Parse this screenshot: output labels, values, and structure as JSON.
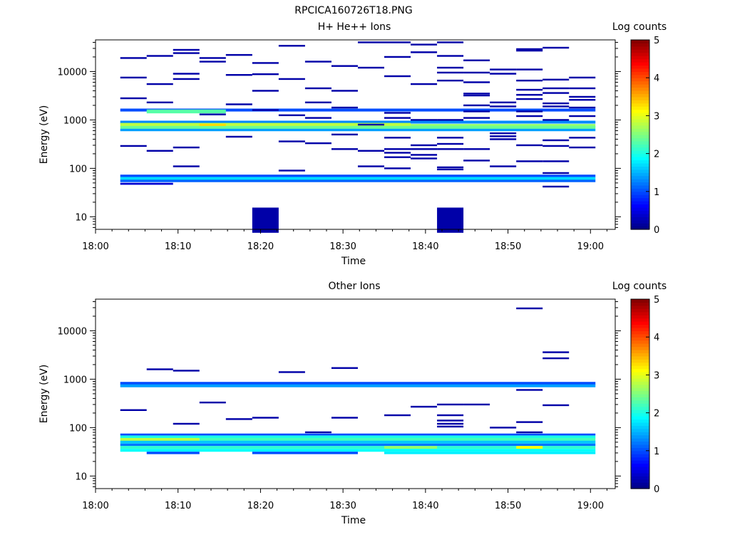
{
  "figure_title": "RPCICA160726T18.PNG",
  "colors": {
    "colormap": [
      "#00007f",
      "#0000ff",
      "#007fff",
      "#00ffff",
      "#7fff7f",
      "#ffff00",
      "#ff7f00",
      "#ff0000",
      "#7f0000"
    ]
  },
  "chart_data": [
    {
      "type": "heatmap",
      "title": "H+ He++ Ions",
      "xlabel": "Time",
      "ylabel": "Energy (eV)",
      "x_ticks": [
        "18:00",
        "18:10",
        "18:20",
        "18:30",
        "18:40",
        "18:50",
        "19:00"
      ],
      "x_range_min": [
        0,
        63
      ],
      "y_ticks": [
        10,
        100,
        1000,
        10000
      ],
      "y_scale": "log",
      "ylim": [
        5.5,
        45000
      ],
      "colorbar": {
        "title": "Log counts",
        "ticks": [
          0,
          1,
          2,
          3,
          4,
          5
        ],
        "range": [
          0,
          5
        ]
      },
      "time_bins_min": [
        3,
        6.2,
        9.4,
        12.6,
        15.8,
        19,
        22.2,
        25.4,
        28.6,
        31.8,
        35,
        38.2,
        41.4,
        44.6,
        47.8,
        51,
        54.2,
        57.4,
        60.6
      ],
      "bands": [
        {
          "e": 1600,
          "t": [
            3,
            60.6
          ],
          "v": 1.0,
          "h": 0.03
        },
        {
          "e": 1500,
          "t": [
            6.2,
            15.8
          ],
          "v": 2.3,
          "h": 0.04
        },
        {
          "e": 900,
          "t": [
            3,
            60.6
          ],
          "v": 1.3,
          "h": 0.03
        },
        {
          "e": 800,
          "t": [
            3,
            38.2
          ],
          "v": 2.8,
          "h": 0.035
        },
        {
          "e": 780,
          "t": [
            12.6,
            15.8
          ],
          "v": 3.3,
          "h": 0.03
        },
        {
          "e": 760,
          "t": [
            38.2,
            60.6
          ],
          "v": 2.6,
          "h": 0.035
        },
        {
          "e": 700,
          "t": [
            3,
            60.6
          ],
          "v": 2.4,
          "h": 0.03
        },
        {
          "e": 620,
          "t": [
            3,
            60.6
          ],
          "v": 1.4,
          "h": 0.025
        },
        {
          "e": 70,
          "t": [
            3,
            60.6
          ],
          "v": 1.0,
          "h": 0.025
        },
        {
          "e": 62,
          "t": [
            3,
            60.6
          ],
          "v": 1.7,
          "h": 0.03
        },
        {
          "e": 55,
          "t": [
            3,
            60.6
          ],
          "v": 1.1,
          "h": 0.025
        },
        {
          "e": 48,
          "t": [
            3,
            9.4
          ],
          "v": 0.4,
          "h": 0.02
        },
        {
          "e": 8.5,
          "t": [
            19,
            22.2
          ],
          "v": 0.2,
          "h": 0.26
        },
        {
          "e": 8.5,
          "t": [
            41.4,
            44.6
          ],
          "v": 0.2,
          "h": 0.26
        }
      ],
      "cells": [
        {
          "t": 3,
          "e": [
            19000,
            7500,
            2800,
            290
          ]
        },
        {
          "t": 6.2,
          "e": [
            21000,
            5500,
            2300,
            230
          ]
        },
        {
          "t": 9.4,
          "e": [
            28000,
            24000,
            9000,
            7000,
            270,
            110
          ]
        },
        {
          "t": 12.6,
          "e": [
            19000,
            16000,
            1300
          ]
        },
        {
          "t": 15.8,
          "e": [
            22000,
            8500,
            2100,
            450
          ]
        },
        {
          "t": 19,
          "e": [
            15000,
            8800,
            4000,
            1600
          ]
        },
        {
          "t": 22.2,
          "e": [
            34000,
            7000,
            1250,
            360,
            90
          ]
        },
        {
          "t": 25.4,
          "e": [
            16000,
            4500,
            2300,
            1100,
            330
          ]
        },
        {
          "t": 28.6,
          "e": [
            13000,
            4000,
            1800,
            500,
            250
          ]
        },
        {
          "t": 31.8,
          "e": [
            40000,
            12000,
            800,
            230,
            110
          ]
        },
        {
          "t": 35,
          "e": [
            40000,
            20000,
            8000,
            1400,
            1100,
            430,
            250,
            210,
            170,
            100
          ]
        },
        {
          "t": 38.2,
          "e": [
            36000,
            25000,
            5500,
            1000,
            300,
            250,
            190,
            160
          ]
        },
        {
          "t": 41.4,
          "e": [
            40000,
            21000,
            12000,
            9500,
            6500,
            1000,
            430,
            320,
            250,
            105,
            95
          ]
        },
        {
          "t": 44.6,
          "e": [
            17000,
            9500,
            6000,
            3500,
            3200,
            2000,
            1500,
            1100,
            250,
            145
          ]
        },
        {
          "t": 47.8,
          "e": [
            11000,
            9000,
            2300,
            1900,
            530,
            460,
            400,
            110
          ]
        },
        {
          "t": 51,
          "e": [
            29000,
            27000,
            11000,
            6500,
            4200,
            3300,
            2700,
            1500,
            1200,
            300,
            140
          ]
        },
        {
          "t": 54.2,
          "e": [
            31000,
            6800,
            4500,
            3600,
            2200,
            1900,
            1000,
            380,
            290,
            140,
            80,
            42
          ]
        },
        {
          "t": 57.4,
          "e": [
            7500,
            4500,
            3000,
            2600,
            1800,
            1200,
            430,
            270
          ]
        }
      ]
    },
    {
      "type": "heatmap",
      "title": "Other Ions",
      "xlabel": "Time",
      "ylabel": "Energy (eV)",
      "x_ticks": [
        "18:00",
        "18:10",
        "18:20",
        "18:30",
        "18:40",
        "18:50",
        "19:00"
      ],
      "x_range_min": [
        0,
        63
      ],
      "y_ticks": [
        10,
        100,
        1000,
        10000
      ],
      "y_scale": "log",
      "ylim": [
        5.5,
        45000
      ],
      "colorbar": {
        "title": "Log counts",
        "ticks": [
          0,
          1,
          2,
          3,
          4,
          5
        ],
        "range": [
          0,
          5
        ]
      },
      "bands": [
        {
          "e": 820,
          "t": [
            3,
            60.6
          ],
          "v": 1.0,
          "h": 0.03
        },
        {
          "e": 730,
          "t": [
            3,
            60.6
          ],
          "v": 1.4,
          "h": 0.03
        },
        {
          "e": 72,
          "t": [
            3,
            60.6
          ],
          "v": 1.0,
          "h": 0.02
        },
        {
          "e": 64,
          "t": [
            3,
            60.6
          ],
          "v": 2.0,
          "h": 0.03
        },
        {
          "e": 57,
          "t": [
            3,
            12.6
          ],
          "v": 2.8,
          "h": 0.03
        },
        {
          "e": 57,
          "t": [
            12.6,
            60.6
          ],
          "v": 2.2,
          "h": 0.03
        },
        {
          "e": 50,
          "t": [
            3,
            60.6
          ],
          "v": 1.6,
          "h": 0.03
        },
        {
          "e": 44,
          "t": [
            3,
            60.6
          ],
          "v": 1.2,
          "h": 0.025
        },
        {
          "e": 39,
          "t": [
            3,
            60.6
          ],
          "v": 2.1,
          "h": 0.03
        },
        {
          "e": 39,
          "t": [
            35,
            41.4
          ],
          "v": 2.6,
          "h": 0.03
        },
        {
          "e": 39,
          "t": [
            51,
            54.2
          ],
          "v": 3.1,
          "h": 0.03
        },
        {
          "e": 34,
          "t": [
            3,
            60.6
          ],
          "v": 1.9,
          "h": 0.03
        },
        {
          "e": 30,
          "t": [
            6.2,
            12.6
          ],
          "v": 1.0,
          "h": 0.025
        },
        {
          "e": 30,
          "t": [
            19,
            31.8
          ],
          "v": 1.0,
          "h": 0.025
        },
        {
          "e": 30,
          "t": [
            35,
            60.6
          ],
          "v": 1.8,
          "h": 0.025
        }
      ],
      "cells": [
        {
          "t": 3,
          "e": [
            230
          ]
        },
        {
          "t": 6.2,
          "e": [
            1600
          ]
        },
        {
          "t": 9.4,
          "e": [
            1500,
            120
          ]
        },
        {
          "t": 12.6,
          "e": [
            330
          ]
        },
        {
          "t": 15.8,
          "e": [
            150
          ]
        },
        {
          "t": 19,
          "e": [
            160
          ]
        },
        {
          "t": 22.2,
          "e": [
            1400
          ]
        },
        {
          "t": 25.4,
          "e": [
            80
          ]
        },
        {
          "t": 28.6,
          "e": [
            1700,
            160
          ]
        },
        {
          "t": 35,
          "e": [
            180
          ]
        },
        {
          "t": 38.2,
          "e": [
            270
          ]
        },
        {
          "t": 41.4,
          "e": [
            300,
            180,
            140,
            120,
            105
          ]
        },
        {
          "t": 44.6,
          "e": [
            300
          ]
        },
        {
          "t": 47.8,
          "e": [
            100
          ]
        },
        {
          "t": 51,
          "e": [
            29000,
            600,
            130,
            80
          ]
        },
        {
          "t": 54.2,
          "e": [
            3600,
            2700,
            290
          ]
        }
      ]
    }
  ]
}
